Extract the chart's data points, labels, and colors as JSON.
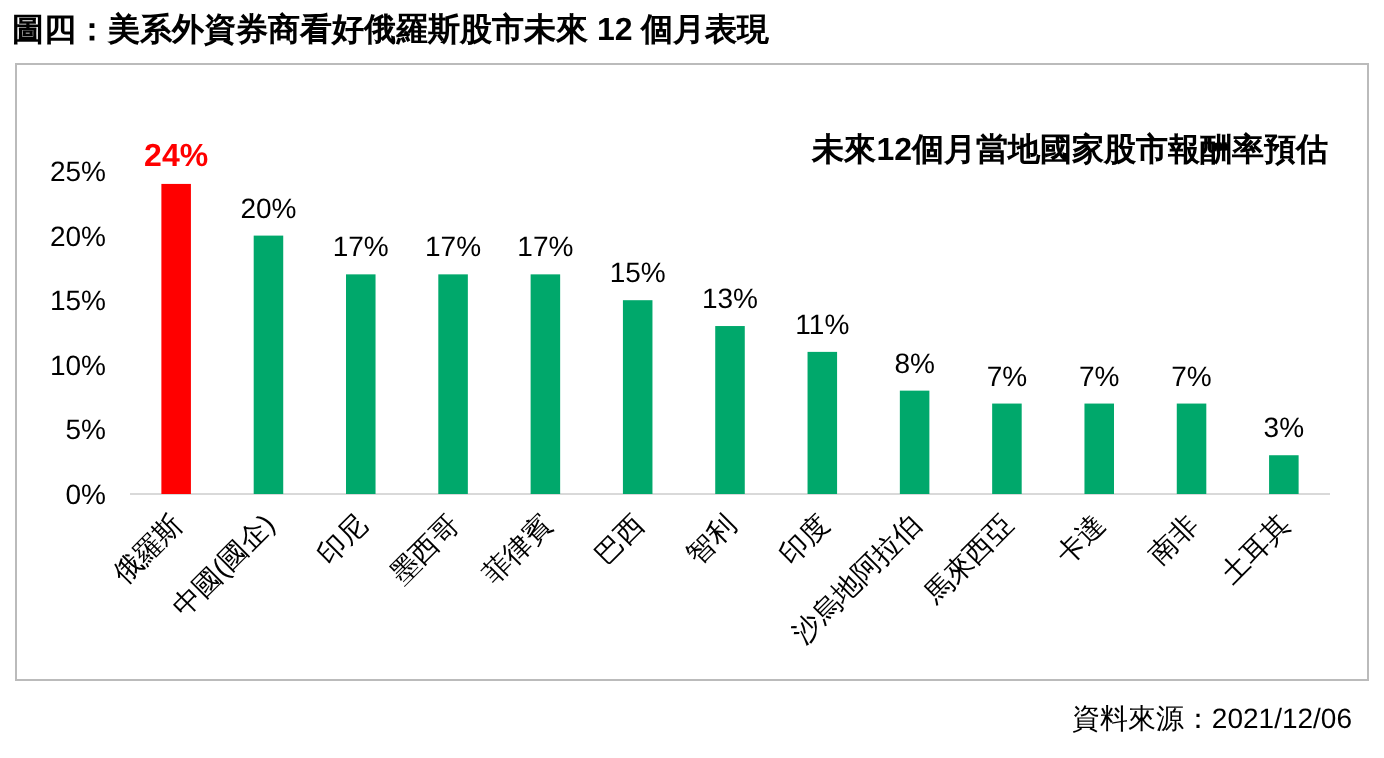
{
  "chart_data": {
    "type": "bar",
    "title": "圖四：美系外資券商看好俄羅斯股市未來 12 個月表現",
    "subtitle": "未來12個月當地國家股市報酬率預估",
    "categories": [
      "俄羅斯",
      "中國(國企)",
      "印尼",
      "墨西哥",
      "菲律賓",
      "巴西",
      "智利",
      "印度",
      "沙烏地阿拉伯",
      "馬來西亞",
      "卡達",
      "南非",
      "土耳其"
    ],
    "values": [
      24,
      20,
      17,
      17,
      17,
      15,
      13,
      11,
      8,
      7,
      7,
      7,
      3
    ],
    "colors": [
      "#ff0000",
      "#00a86b",
      "#00a86b",
      "#00a86b",
      "#00a86b",
      "#00a86b",
      "#00a86b",
      "#00a86b",
      "#00a86b",
      "#00a86b",
      "#00a86b",
      "#00a86b",
      "#00a86b"
    ],
    "value_labels": [
      "24%",
      "20%",
      "17%",
      "17%",
      "17%",
      "15%",
      "13%",
      "11%",
      "8%",
      "7%",
      "7%",
      "7%",
      "3%"
    ],
    "ylim": [
      0,
      25
    ],
    "yticks": [
      {
        "value": 0,
        "label": "0%"
      },
      {
        "value": 5,
        "label": "5%"
      },
      {
        "value": 10,
        "label": "10%"
      },
      {
        "value": 15,
        "label": "15%"
      },
      {
        "value": 20,
        "label": "20%"
      },
      {
        "value": 25,
        "label": "25%"
      }
    ],
    "annotations": [
      "資料來源：2021/12/06"
    ]
  }
}
